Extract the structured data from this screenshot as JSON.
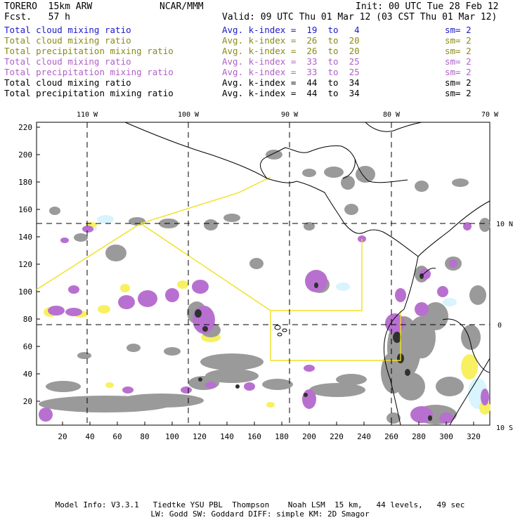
{
  "header": {
    "model": "TORERO  15km ARW",
    "center": "NCAR/MMM",
    "init": "Init: 00 UTC Tue 28 Feb 12",
    "fcst": "Fcst.   57 h",
    "valid": "Valid: 09 UTC Thu 01 Mar 12 (03 CST Thu 01 Mar 12)"
  },
  "legend": [
    {
      "field": "Total cloud mixing ratio",
      "kindex": "Avg. k-index =  19  to   4",
      "sm": "sm= 2",
      "color": "#1a1acc"
    },
    {
      "field": "Total cloud mixing ratio",
      "kindex": "Avg. k-index =  26  to  20",
      "sm": "sm= 2",
      "color": "#8a8a1a"
    },
    {
      "field": "Total precipitation mixing ratio",
      "kindex": "Avg. k-index =  26  to  20",
      "sm": "sm= 2",
      "color": "#8a8a1a"
    },
    {
      "field": "Total cloud mixing ratio",
      "kindex": "Avg. k-index =  33  to  25",
      "sm": "sm= 2",
      "color": "#b060c8"
    },
    {
      "field": "Total precipitation mixing ratio",
      "kindex": "Avg. k-index =  33  to  25",
      "sm": "sm= 2",
      "color": "#b060c8"
    },
    {
      "field": "Total cloud mixing ratio",
      "kindex": "Avg. k-index =  44  to  34",
      "sm": "sm= 2",
      "color": "#000000"
    },
    {
      "field": "Total precipitation mixing ratio",
      "kindex": "Avg. k-index =  44  to  34",
      "sm": "sm= 2",
      "color": "#000000"
    }
  ],
  "map": {
    "lon_labels": [
      "110 W",
      "100 W",
      "90 W",
      "80 W",
      "70 W"
    ],
    "lat_labels": [
      "10 N",
      "0",
      "10 S"
    ],
    "y_ticks": [
      "220",
      "200",
      "180",
      "160",
      "140",
      "120",
      "100",
      "80",
      "60",
      "40",
      "20"
    ],
    "x_ticks": [
      "20",
      "40",
      "60",
      "80",
      "100",
      "120",
      "140",
      "160",
      "180",
      "200",
      "220",
      "240",
      "260",
      "280",
      "300",
      "320"
    ],
    "colors": {
      "gray": "#9a9a9a",
      "purple": "#b870d0",
      "yellow": "#f8f060",
      "cyan": "#d8f4fc",
      "box": "#f0e020"
    }
  },
  "footer": {
    "line1": "Model Info: V3.3.1   Tiedtke YSU PBL  Thompson    Noah LSM  15 km,   44 levels,   49 sec",
    "line2": "LW: Godd SW: Goddard DIFF: simple KM: 2D Smagor"
  }
}
